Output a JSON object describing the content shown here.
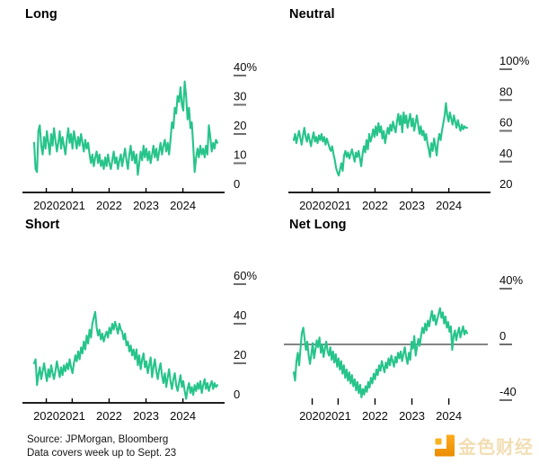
{
  "page": {
    "background": "#ffffff"
  },
  "colors": {
    "line_green": "#26c48a",
    "axis_black": "#000000",
    "tick_dash_gray": "#6e6e6e",
    "zero_line_gray": "#3a3a3a",
    "text_black": "#0c0c0c",
    "logo_orange_top": "#ffab1f",
    "logo_orange_bottom": "#ea8c00",
    "logo_text_gold": "#f2ddb0"
  },
  "footer": {
    "source_line": "Source: JPMorgan, Bloomberg",
    "note_line": "Data covers week up to Sept. 23",
    "logo_text": "金色财经"
  },
  "chart_data": [
    {
      "type": "line",
      "title": "Long",
      "x_labels": [
        "2020",
        "2021",
        "2022",
        "2023",
        "2024"
      ],
      "ylim": [
        0,
        40
      ],
      "y_ticks": [
        {
          "v": 40,
          "label": "40%"
        },
        {
          "v": 30,
          "label": "30"
        },
        {
          "v": 20,
          "label": "20"
        },
        {
          "v": 10,
          "label": "10"
        },
        {
          "v": 0,
          "label": "0"
        }
      ],
      "layout_hints": {
        "y_axis_side": "right",
        "grid": false,
        "unit": "percent"
      },
      "values": [
        17,
        8,
        7,
        21,
        23,
        16,
        13,
        19,
        15,
        21,
        17,
        13,
        20,
        16,
        22,
        18,
        14,
        17,
        21,
        15,
        19,
        16,
        13,
        18,
        22,
        17,
        20,
        15,
        21,
        18,
        15,
        19,
        16,
        20,
        17,
        14,
        18,
        15,
        17,
        13,
        10,
        13,
        9,
        12,
        14,
        10,
        13,
        9,
        11,
        8,
        12,
        9,
        13,
        10,
        8,
        11,
        14,
        10,
        12,
        8,
        11,
        13,
        9,
        12,
        15,
        11,
        8,
        13,
        16,
        11,
        14,
        10,
        13,
        6,
        10,
        14,
        11,
        16,
        12,
        15,
        11,
        14,
        10,
        13,
        16,
        12,
        15,
        11,
        14,
        17,
        13,
        16,
        18,
        14,
        17,
        13,
        18,
        24,
        22,
        29,
        27,
        33,
        31,
        36,
        30,
        28,
        38,
        33,
        25,
        29,
        22,
        24,
        16,
        7,
        12,
        15,
        12,
        16,
        13,
        15,
        12,
        16,
        13,
        23,
        19,
        14,
        17,
        15,
        18,
        17
      ]
    },
    {
      "type": "line",
      "title": "Neutral",
      "x_labels": [
        "2020",
        "2021",
        "2022",
        "2023",
        "2024"
      ],
      "ylim": [
        20,
        100
      ],
      "y_ticks": [
        {
          "v": 100,
          "label": "100%"
        },
        {
          "v": 80,
          "label": "80"
        },
        {
          "v": 60,
          "label": "60"
        },
        {
          "v": 40,
          "label": "40"
        },
        {
          "v": 20,
          "label": "20"
        }
      ],
      "layout_hints": {
        "y_axis_side": "right",
        "grid": false,
        "unit": "percent"
      },
      "values": [
        54,
        58,
        52,
        56,
        60,
        55,
        51,
        57,
        62,
        56,
        53,
        58,
        54,
        50,
        55,
        59,
        53,
        56,
        52,
        57,
        54,
        58,
        53,
        56,
        51,
        55,
        52,
        49,
        47,
        50,
        45,
        41,
        36,
        33,
        31,
        35,
        39,
        34,
        44,
        47,
        43,
        46,
        42,
        45,
        48,
        44,
        40,
        46,
        43,
        47,
        42,
        37,
        45,
        50,
        46,
        54,
        48,
        58,
        53,
        56,
        61,
        56,
        63,
        57,
        65,
        59,
        63,
        55,
        60,
        52,
        57,
        62,
        58,
        64,
        60,
        66,
        62,
        59,
        66,
        71,
        64,
        70,
        59,
        72,
        65,
        70,
        62,
        67,
        71,
        63,
        68,
        60,
        65,
        70,
        64,
        58,
        63,
        57,
        60,
        54,
        58,
        52,
        48,
        43,
        52,
        47,
        55,
        50,
        44,
        53,
        58,
        54,
        60,
        65,
        70,
        78,
        70,
        66,
        72,
        68,
        64,
        70,
        66,
        62,
        67,
        63,
        60,
        64,
        61,
        63,
        62,
        62
      ]
    },
    {
      "type": "line",
      "title": "Short",
      "x_labels": [
        "2020",
        "2021",
        "2022",
        "2023",
        "2024"
      ],
      "ylim": [
        0,
        60
      ],
      "y_ticks": [
        {
          "v": 60,
          "label": "60%"
        },
        {
          "v": 40,
          "label": "40"
        },
        {
          "v": 20,
          "label": "20"
        },
        {
          "v": 0,
          "label": "0"
        }
      ],
      "layout_hints": {
        "y_axis_side": "right",
        "grid": false,
        "unit": "percent"
      },
      "values": [
        20,
        22,
        9,
        14,
        18,
        12,
        16,
        20,
        15,
        11,
        17,
        13,
        19,
        15,
        12,
        16,
        21,
        17,
        13,
        18,
        14,
        19,
        16,
        20,
        17,
        22,
        18,
        15,
        20,
        24,
        21,
        26,
        22,
        28,
        25,
        31,
        27,
        34,
        30,
        37,
        33,
        40,
        43,
        46,
        38,
        34,
        37,
        32,
        35,
        31,
        34,
        36,
        33,
        38,
        35,
        40,
        37,
        41,
        38,
        35,
        40,
        37,
        36,
        32,
        35,
        29,
        31,
        26,
        29,
        24,
        27,
        22,
        27,
        19,
        24,
        17,
        22,
        25,
        18,
        21,
        15,
        19,
        23,
        13,
        18,
        22,
        16,
        12,
        17,
        20,
        14,
        10,
        15,
        8,
        13,
        17,
        11,
        7,
        12,
        15,
        9,
        6,
        10,
        14,
        8,
        11,
        6,
        2,
        7,
        10,
        5,
        8,
        4,
        9,
        6,
        10,
        7,
        11,
        5,
        9,
        12,
        7,
        10,
        6,
        9,
        11,
        7,
        10,
        8,
        9
      ]
    },
    {
      "type": "line",
      "title": "Net Long",
      "x_labels": [
        "2020",
        "2021",
        "2022",
        "2023",
        "2024"
      ],
      "ylim": [
        -40,
        40
      ],
      "y_ticks": [
        {
          "v": 40,
          "label": "40%"
        },
        {
          "v": 0,
          "label": "0"
        },
        {
          "v": -40,
          "label": "-40"
        }
      ],
      "layout_hints": {
        "y_axis_side": "right",
        "grid": false,
        "unit": "percent",
        "zero_line": true
      },
      "values": [
        -20,
        -26,
        -12,
        -6,
        -15,
        -3,
        8,
        12,
        4,
        -4,
        2,
        -8,
        -14,
        -7,
        1,
        -10,
        -4,
        3,
        -2,
        5,
        -6,
        0,
        -9,
        -3,
        2,
        -5,
        -8,
        -2,
        -11,
        -5,
        -13,
        -7,
        -16,
        -10,
        -18,
        -12,
        -21,
        -15,
        -24,
        -18,
        -26,
        -20,
        -28,
        -22,
        -30,
        -25,
        -33,
        -27,
        -35,
        -29,
        -38,
        -32,
        -36,
        -30,
        -34,
        -27,
        -31,
        -24,
        -28,
        -21,
        -25,
        -18,
        -22,
        -15,
        -19,
        -12,
        -16,
        -20,
        -13,
        -17,
        -10,
        -15,
        -8,
        -12,
        -16,
        -9,
        -13,
        -6,
        -10,
        -5,
        -12,
        -7,
        -2,
        -9,
        -14,
        -6,
        -11,
        2,
        -3,
        6,
        -8,
        -2,
        4,
        -1,
        6,
        12,
        8,
        15,
        10,
        17,
        13,
        19,
        24,
        17,
        21,
        14,
        18,
        22,
        26,
        19,
        23,
        15,
        20,
        12,
        16,
        9,
        13,
        -4,
        6,
        10,
        3,
        8,
        12,
        5,
        9,
        13,
        7,
        10,
        8
      ]
    }
  ]
}
